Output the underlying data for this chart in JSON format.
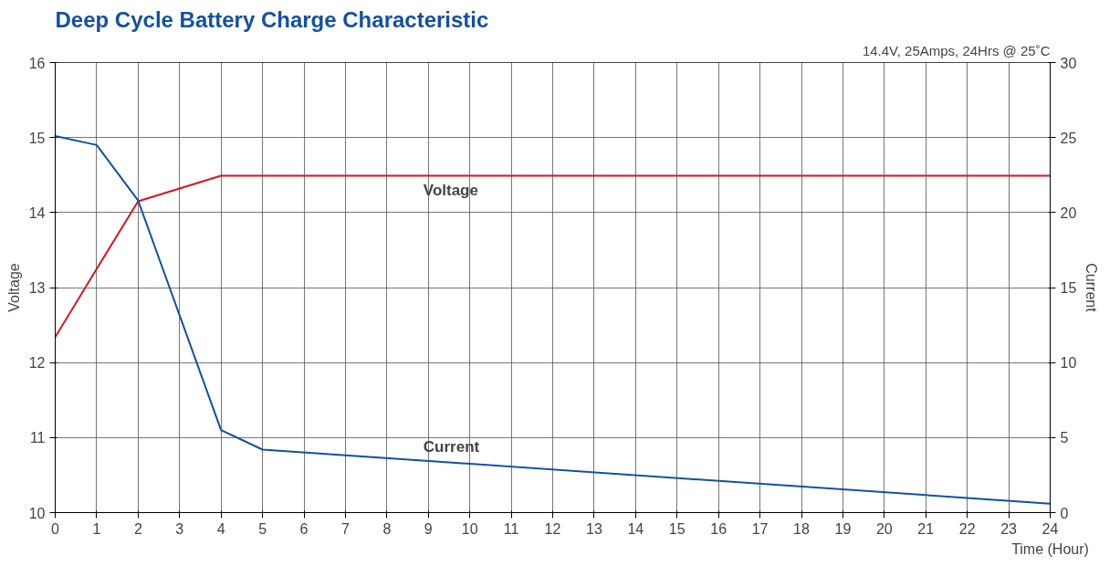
{
  "chart_data": {
    "type": "line",
    "title": "Deep Cycle Battery Charge Characteristic",
    "subtitle": "14.4V, 25Amps, 24Hrs @ 25˚C",
    "xlabel": "Time (Hour)",
    "ylabel": "Voltage",
    "y2label": "Current",
    "x": [
      0,
      1,
      2,
      4,
      5,
      24
    ],
    "series": [
      {
        "name": "Voltage",
        "color": "#d7141e",
        "x": [
          0,
          1,
          2,
          4,
          24
        ],
        "values": [
          12.34,
          13.25,
          14.15,
          14.49,
          14.49
        ]
      },
      {
        "name": "Current",
        "color": "#1450a0",
        "axis": "y2",
        "values": [
          25.1,
          24.5,
          20.8,
          5.5,
          4.2,
          0.6
        ]
      }
    ],
    "xlim": [
      0,
      24
    ],
    "xticks": [
      0,
      1,
      2,
      3,
      4,
      5,
      6,
      7,
      8,
      9,
      10,
      11,
      12,
      13,
      14,
      15,
      16,
      17,
      18,
      19,
      20,
      21,
      22,
      23,
      24
    ],
    "ylim": [
      10,
      16
    ],
    "yticks": [
      10,
      11,
      12,
      13,
      14,
      15,
      16
    ],
    "y2lim": [
      0,
      30
    ],
    "y2ticks": [
      0,
      5,
      10,
      15,
      20,
      25,
      30
    ],
    "grid": true,
    "line_style": "solid"
  }
}
